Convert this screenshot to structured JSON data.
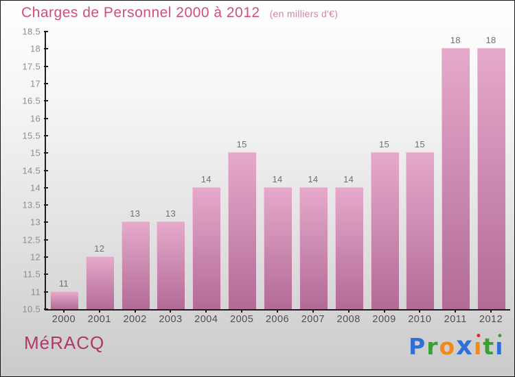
{
  "title": {
    "text": "Charges de Personnel 2000 à 2012",
    "subtitle": "(en milliers d'€)"
  },
  "footer": {
    "org": "MéRACQ",
    "logo": {
      "name": "Proxiti",
      "letters": [
        {
          "ch": "P",
          "color": "#2f6fd6"
        },
        {
          "ch": "r",
          "color": "#3ba033"
        },
        {
          "ch": "o",
          "color": "#f28a18"
        },
        {
          "ch": "x",
          "color": "#2f6fd6",
          "big": true
        },
        {
          "ch": "ı",
          "color": "#f28a18",
          "dot": "#e0281e"
        },
        {
          "ch": "t",
          "color": "#3ba033"
        },
        {
          "ch": "ı",
          "color": "#2f6fd6",
          "dot": "#3ba033"
        }
      ]
    }
  },
  "colors": {
    "title": "#d14e78",
    "subtitle": "#d87fa6",
    "org": "#b03768",
    "bar_top": "#e6a9cb",
    "bar_bottom": "#b26b96",
    "bar_edge": "#eec0dc"
  },
  "chart_data": {
    "type": "bar",
    "title": "Charges de Personnel 2000 à 2012",
    "subtitle": "(en milliers d'€)",
    "xlabel": "",
    "ylabel": "",
    "categories": [
      "2000",
      "2001",
      "2002",
      "2003",
      "2004",
      "2005",
      "2006",
      "2007",
      "2008",
      "2009",
      "2010",
      "2011",
      "2012"
    ],
    "values": [
      11,
      12,
      13,
      13,
      14,
      15,
      14,
      14,
      14,
      15,
      15,
      18,
      18
    ],
    "ylim": [
      10.5,
      18.5
    ],
    "ytick_step": 0.5,
    "grid": false,
    "legend": false,
    "value_labels": true
  }
}
